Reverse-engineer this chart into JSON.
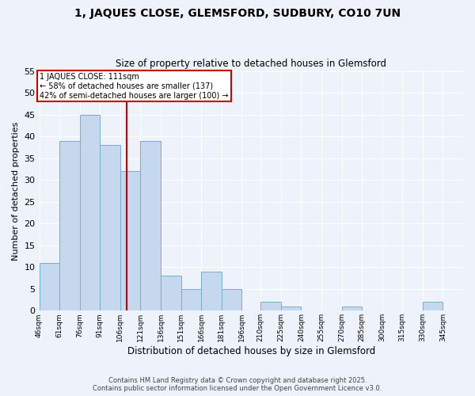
{
  "title1": "1, JAQUES CLOSE, GLEMSFORD, SUDBURY, CO10 7UN",
  "title2": "Size of property relative to detached houses in Glemsford",
  "xlabel": "Distribution of detached houses by size in Glemsford",
  "ylabel": "Number of detached properties",
  "bar_color": "#c5d8ed",
  "bar_edge_color": "#7aacce",
  "bg_color": "#eef2fa",
  "grid_color": "#ffffff",
  "bins": [
    46,
    61,
    76,
    91,
    106,
    121,
    136,
    151,
    166,
    181,
    196,
    210,
    225,
    240,
    255,
    270,
    285,
    300,
    315,
    330,
    345,
    360
  ],
  "bin_labels": [
    "46sqm",
    "61sqm",
    "76sqm",
    "91sqm",
    "106sqm",
    "121sqm",
    "136sqm",
    "151sqm",
    "166sqm",
    "181sqm",
    "196sqm",
    "210sqm",
    "225sqm",
    "240sqm",
    "255sqm",
    "270sqm",
    "285sqm",
    "300sqm",
    "315sqm",
    "330sqm",
    "345sqm"
  ],
  "counts": [
    11,
    39,
    45,
    38,
    32,
    39,
    8,
    5,
    9,
    5,
    0,
    2,
    1,
    0,
    0,
    1,
    0,
    0,
    0,
    2,
    0
  ],
  "property_label": "1 JAQUES CLOSE: 111sqm",
  "annotation_line1": "← 58% of detached houses are smaller (137)",
  "annotation_line2": "42% of semi-detached houses are larger (100) →",
  "vline_x": 111,
  "vline_color": "#cc0000",
  "ylim": [
    0,
    55
  ],
  "yticks": [
    0,
    5,
    10,
    15,
    20,
    25,
    30,
    35,
    40,
    45,
    50,
    55
  ],
  "footer1": "Contains HM Land Registry data © Crown copyright and database right 2025.",
  "footer2": "Contains public sector information licensed under the Open Government Licence v3.0."
}
